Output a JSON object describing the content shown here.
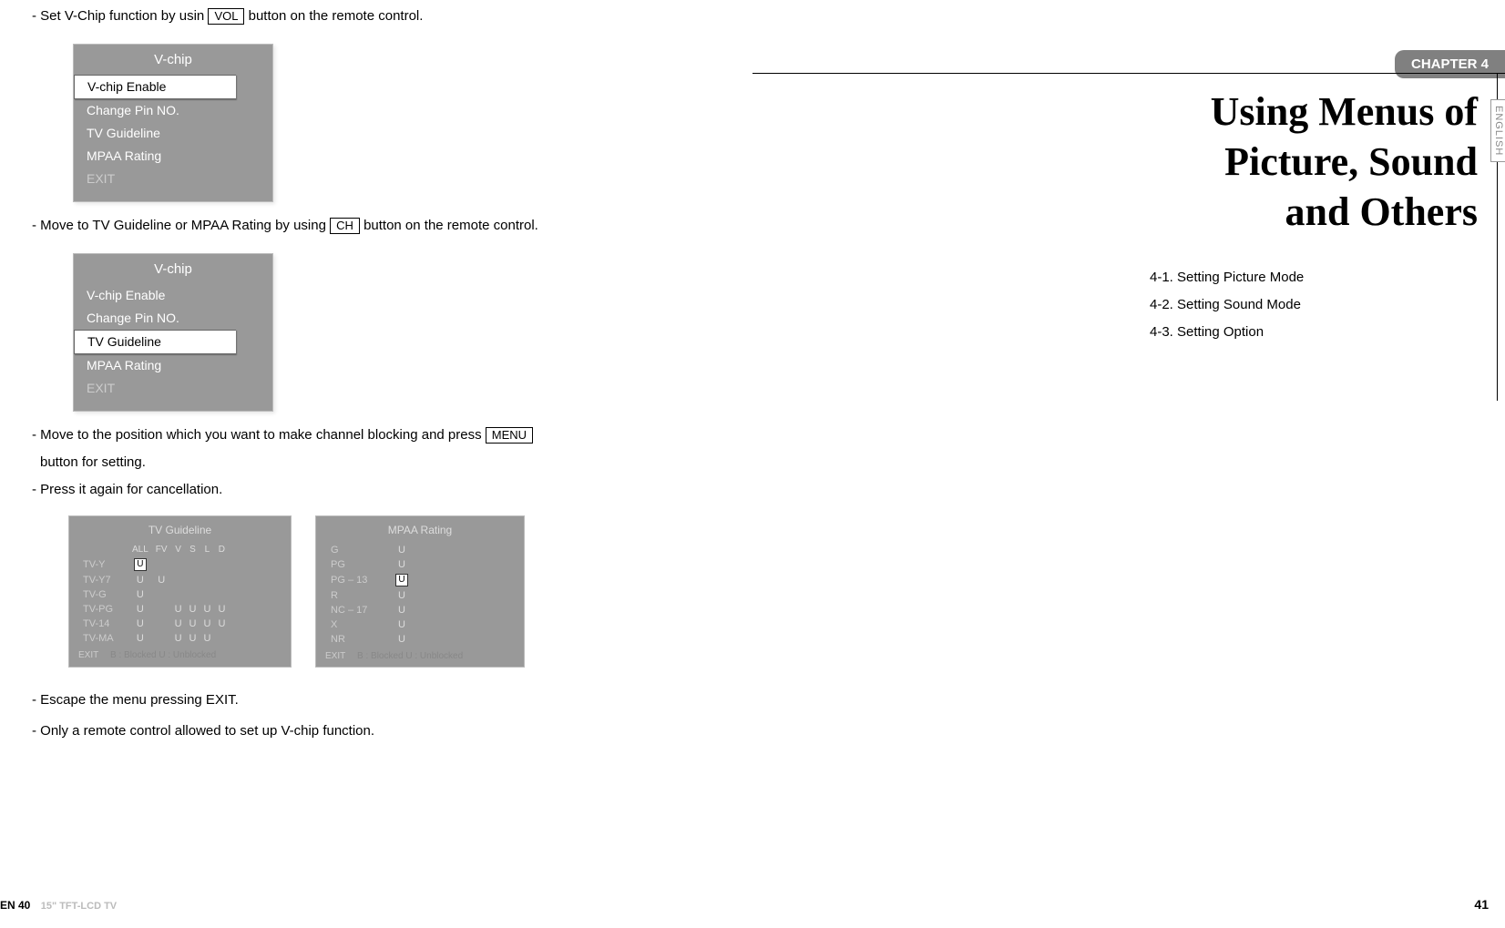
{
  "left": {
    "instructions": {
      "i1_pre": "- Set V-Chip function by usin ",
      "i1_btn": "VOL",
      "i1_post": " button on the remote control.",
      "i2_pre": "- Move to TV Guideline or MPAA Rating by using ",
      "i2_btn": "CH",
      "i2_post": " button on the remote control.",
      "i3_pre": "- Move to the position which you want to make channel blocking and press ",
      "i3_btn": "MENU",
      "i3_post_line1": "",
      "i3_line2": "button for setting.",
      "i4": "- Press it again for cancellation.",
      "i5": "- Escape the menu pressing EXIT.",
      "i6": "- Only a remote control allowed to set up V-chip function."
    },
    "menu1": {
      "title": "V-chip",
      "items": [
        {
          "text": "V-chip Enable",
          "selected": true
        },
        {
          "text": "Change Pin NO.",
          "selected": false
        },
        {
          "text": "TV Guideline",
          "selected": false
        },
        {
          "text": "MPAA Rating",
          "selected": false
        },
        {
          "text": "EXIT",
          "selected": false,
          "exit": true
        }
      ]
    },
    "menu2": {
      "title": "V-chip",
      "items": [
        {
          "text": "V-chip Enable",
          "selected": false
        },
        {
          "text": "Change Pin NO.",
          "selected": false
        },
        {
          "text": "TV Guideline",
          "selected": true
        },
        {
          "text": "MPAA Rating",
          "selected": false
        },
        {
          "text": "EXIT",
          "selected": false,
          "exit": true
        }
      ]
    },
    "tv_guideline": {
      "title": "TV Guideline",
      "columns": [
        "ALL",
        "FV",
        "V",
        "S",
        "L",
        "D"
      ],
      "rows": [
        {
          "label": "TV-Y",
          "cells": [
            "U_boxed",
            "",
            "",
            "",
            "",
            ""
          ]
        },
        {
          "label": "TV-Y7",
          "cells": [
            "U",
            "U",
            "",
            "",
            "",
            ""
          ]
        },
        {
          "label": "TV-G",
          "cells": [
            "U",
            "",
            "",
            "",
            "",
            ""
          ]
        },
        {
          "label": "TV-PG",
          "cells": [
            "U",
            "",
            "U",
            "U",
            "U",
            "U"
          ]
        },
        {
          "label": "TV-14",
          "cells": [
            "U",
            "",
            "U",
            "U",
            "U",
            "U"
          ]
        },
        {
          "label": "TV-MA",
          "cells": [
            "U",
            "",
            "U",
            "U",
            "U",
            ""
          ]
        }
      ],
      "footer_exit": "EXIT",
      "footer_legend": "B : Blocked    U : Unblocked"
    },
    "mpaa": {
      "title": "MPAA Rating",
      "rows": [
        {
          "label": "G",
          "val": "U",
          "boxed": false
        },
        {
          "label": "PG",
          "val": "U",
          "boxed": false
        },
        {
          "label": "PG – 13",
          "val": "U",
          "boxed": true
        },
        {
          "label": "R",
          "val": "U",
          "boxed": false
        },
        {
          "label": "NC – 17",
          "val": "U",
          "boxed": false
        },
        {
          "label": "X",
          "val": "U",
          "boxed": false
        },
        {
          "label": "NR",
          "val": "U",
          "boxed": false
        }
      ],
      "footer_exit": "EXIT",
      "footer_legend": "B : Blocked    U : Unblocked"
    },
    "footer": {
      "page": "EN 40",
      "model": "15\" TFT-LCD TV"
    }
  },
  "right": {
    "chapter_tab": "CHAPTER 4",
    "english_tab": "ENGLISH",
    "title_l1": "Using Menus of",
    "title_l2": "Picture, Sound",
    "title_l3": "and Others",
    "toc": [
      "4-1. Setting Picture Mode",
      "4-2. Setting Sound Mode",
      "4-3. Setting Option"
    ],
    "footer_page": "41"
  },
  "colors": {
    "menu_bg": "#999999",
    "menu_text": "#ffffff",
    "menu_selected_bg": "#ffffff",
    "menu_exit_text": "#cccccc",
    "chapter_tab_bg": "#808080"
  }
}
